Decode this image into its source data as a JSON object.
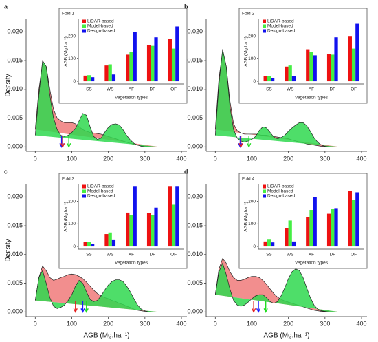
{
  "chart_data": [
    {
      "type": "area",
      "panel_label": "a",
      "ylabel": "Density",
      "x": [
        0,
        10,
        20,
        30,
        40,
        50,
        60,
        70,
        80,
        90,
        100,
        110,
        120,
        130,
        140,
        150,
        160,
        170,
        180,
        190,
        200,
        210,
        220,
        230,
        240,
        250,
        260,
        270,
        280,
        290,
        300,
        310,
        320,
        330,
        340
      ],
      "series": [
        {
          "color": "#f07a7a",
          "values": [
            0.003,
            0.01,
            0.0145,
            0.014,
            0.01,
            0.0065,
            0.005,
            0.0045,
            0.0042,
            0.0042,
            0.0042,
            0.004,
            0.0035,
            0.003,
            0.0027,
            0.0025,
            0.0024,
            0.0023,
            0.0022,
            0.002,
            0.0018,
            0.0016,
            0.0014,
            0.0012,
            0.001,
            0.0008,
            0.0006,
            0.0004,
            0.0003,
            0.0002,
            0.0001,
            5e-05,
            0,
            0,
            0
          ]
        },
        {
          "color": "#2fd84f",
          "values": [
            0.002,
            0.009,
            0.015,
            0.014,
            0.009,
            0.005,
            0.003,
            0.002,
            0.0018,
            0.002,
            0.0025,
            0.0032,
            0.0045,
            0.0058,
            0.0055,
            0.0035,
            0.0018,
            0.0013,
            0.0015,
            0.0025,
            0.0034,
            0.0039,
            0.004,
            0.0038,
            0.003,
            0.002,
            0.0012,
            0.0006,
            0.0003,
            0.0001,
            0,
            0,
            0,
            0,
            0
          ]
        }
      ],
      "arrows": [
        {
          "color": "#1a1aff",
          "x": 72
        },
        {
          "color": "#e52020",
          "x": 75
        },
        {
          "color": "#22dd22",
          "x": 92
        }
      ],
      "xlim": [
        -25,
        415
      ],
      "ylim": [
        -0.0008,
        0.0222
      ],
      "xticks": [
        0,
        100,
        200,
        300,
        400
      ],
      "yticks": [
        {
          "value": 0,
          "label": "0.000"
        },
        {
          "value": 0.005,
          "label": "0.005"
        },
        {
          "value": 0.01,
          "label": "0.010"
        },
        {
          "value": 0.015,
          "label": "0.015"
        },
        {
          "value": 0.02,
          "label": "0.020"
        }
      ],
      "inset": {
        "type": "bar",
        "title": "Fold 1",
        "ylabel": "AGB (Mg.ha⁻¹)",
        "xlabel": "Vegetation types",
        "categories": [
          "SS",
          "WS",
          "AF",
          "DF",
          "OF"
        ],
        "ylim": [
          -12,
          275
        ],
        "yticks": [
          0,
          100,
          200
        ],
        "series": [
          {
            "name": "LiDAR-based",
            "color": "#ee1111",
            "values": [
              25,
              70,
              118,
              162,
              188
            ]
          },
          {
            "name": "Model-based",
            "color": "#44ee44",
            "values": [
              27,
              75,
              130,
              157,
              145
            ]
          },
          {
            "name": "Design-based",
            "color": "#1111ee",
            "values": [
              18,
              30,
              220,
              195,
              243
            ]
          }
        ]
      }
    },
    {
      "type": "area",
      "panel_label": "b",
      "x": [
        0,
        10,
        20,
        30,
        40,
        50,
        60,
        70,
        80,
        90,
        100,
        110,
        120,
        130,
        140,
        150,
        160,
        170,
        180,
        190,
        200,
        210,
        220,
        230,
        240,
        250,
        260,
        270,
        280,
        290,
        300,
        310,
        320,
        330,
        340
      ],
      "series": [
        {
          "color": "#f07a7a",
          "values": [
            0.003,
            0.012,
            0.0165,
            0.014,
            0.008,
            0.004,
            0.0028,
            0.0024,
            0.0022,
            0.0022,
            0.0022,
            0.0022,
            0.0021,
            0.002,
            0.002,
            0.0019,
            0.0018,
            0.0017,
            0.0016,
            0.0015,
            0.0014,
            0.0012,
            0.001,
            0.0008,
            0.0007,
            0.0005,
            0.0004,
            0.0003,
            0.0002,
            0.0001,
            5e-05,
            0,
            0,
            0,
            0
          ]
        },
        {
          "color": "#2fd84f",
          "values": [
            0.002,
            0.011,
            0.017,
            0.014,
            0.007,
            0.003,
            0.0015,
            0.001,
            0.0008,
            0.001,
            0.0013,
            0.0018,
            0.0028,
            0.0035,
            0.0033,
            0.0025,
            0.0017,
            0.0014,
            0.0016,
            0.002,
            0.0027,
            0.0033,
            0.0038,
            0.0042,
            0.0042,
            0.0037,
            0.0027,
            0.0016,
            0.0008,
            0.0003,
            0.0001,
            0,
            0,
            0,
            0
          ]
        }
      ],
      "arrows": [
        {
          "color": "#1a1aff",
          "x": 68
        },
        {
          "color": "#e52020",
          "x": 70
        },
        {
          "color": "#22dd22",
          "x": 92
        }
      ],
      "xlim": [
        -25,
        415
      ],
      "ylim": [
        -0.0008,
        0.0222
      ],
      "xticks": [
        0,
        100,
        200,
        300,
        400
      ],
      "yticks": [
        {
          "value": 0,
          "label": "0.000"
        },
        {
          "value": 0.005,
          "label": "0.005"
        },
        {
          "value": 0.01,
          "label": "0.010"
        },
        {
          "value": 0.015,
          "label": "0.015"
        },
        {
          "value": 0.02,
          "label": "0.020"
        }
      ],
      "inset": {
        "type": "bar",
        "title": "Fold 2",
        "ylabel": "AGB (Mg.ha⁻¹)",
        "xlabel": "Vegetation types",
        "categories": [
          "SS",
          "WS",
          "AF",
          "DF",
          "OF"
        ],
        "ylim": [
          -12,
          275
        ],
        "yticks": [
          0,
          100,
          200
        ],
        "series": [
          {
            "name": "LiDAR-based",
            "color": "#ee1111",
            "values": [
              22,
              65,
              142,
              122,
              198
            ]
          },
          {
            "name": "Model-based",
            "color": "#44ee44",
            "values": [
              22,
              70,
              130,
              118,
              145
            ]
          },
          {
            "name": "Design-based",
            "color": "#1111ee",
            "values": [
              15,
              22,
              115,
              195,
              255
            ]
          }
        ]
      }
    },
    {
      "type": "area",
      "panel_label": "c",
      "ylabel": "Density",
      "xlabel": "AGB (Mg.ha⁻¹)",
      "x": [
        0,
        10,
        20,
        30,
        40,
        50,
        60,
        70,
        80,
        90,
        100,
        110,
        120,
        130,
        140,
        150,
        160,
        170,
        180,
        190,
        200,
        210,
        220,
        230,
        240,
        250,
        260,
        270,
        280,
        290,
        300,
        310,
        320,
        330,
        340
      ],
      "series": [
        {
          "color": "#f07a7a",
          "values": [
            0.002,
            0.006,
            0.008,
            0.0072,
            0.006,
            0.0055,
            0.0057,
            0.006,
            0.0062,
            0.0065,
            0.0066,
            0.0065,
            0.0062,
            0.0058,
            0.0052,
            0.0045,
            0.0038,
            0.0032,
            0.0028,
            0.0025,
            0.0023,
            0.002,
            0.0018,
            0.0015,
            0.0013,
            0.001,
            0.0008,
            0.0005,
            0.0003,
            0.0002,
            0.0001,
            5e-05,
            0,
            0,
            0
          ]
        },
        {
          "color": "#2fd84f",
          "values": [
            0.002,
            0.006,
            0.0072,
            0.005,
            0.0025,
            0.001,
            0.0006,
            0.0008,
            0.0012,
            0.002,
            0.003,
            0.0045,
            0.0055,
            0.005,
            0.0035,
            0.0022,
            0.0018,
            0.002,
            0.0028,
            0.0038,
            0.0047,
            0.0053,
            0.0056,
            0.0056,
            0.0053,
            0.0045,
            0.0035,
            0.0023,
            0.0012,
            0.0005,
            0.0002,
            0,
            0,
            0,
            0
          ]
        }
      ],
      "arrows": [
        {
          "color": "#e52020",
          "x": 110
        },
        {
          "color": "#1a1aff",
          "x": 130
        },
        {
          "color": "#22dd22",
          "x": 140
        }
      ],
      "xlim": [
        -25,
        415
      ],
      "ylim": [
        -0.0008,
        0.0222
      ],
      "xticks": [
        0,
        100,
        200,
        300,
        400
      ],
      "yticks": [
        {
          "value": 0,
          "label": "0.000"
        },
        {
          "value": 0.005,
          "label": "0.005"
        },
        {
          "value": 0.01,
          "label": "0.010"
        },
        {
          "value": 0.015,
          "label": "0.015"
        },
        {
          "value": 0.02,
          "label": "0.020"
        }
      ],
      "inset": {
        "type": "bar",
        "title": "Fold 3",
        "ylabel": "AGB (Mg.ha⁻¹)",
        "xlabel": "Vegetation types",
        "categories": [
          "SS",
          "WS",
          "AF",
          "DF",
          "OF"
        ],
        "ylim": [
          -12,
          275
        ],
        "yticks": [
          0,
          100,
          200
        ],
        "series": [
          {
            "name": "LiDAR-based",
            "color": "#ee1111",
            "values": [
              20,
              55,
              150,
              148,
              265
            ]
          },
          {
            "name": "Model-based",
            "color": "#44ee44",
            "values": [
              20,
              62,
              138,
              140,
              185
            ]
          },
          {
            "name": "Design-based",
            "color": "#1111ee",
            "values": [
              12,
              28,
              265,
              172,
              265
            ]
          }
        ]
      }
    },
    {
      "type": "area",
      "panel_label": "d",
      "xlabel": "AGB (Mg.ha⁻¹)",
      "x": [
        0,
        10,
        20,
        30,
        40,
        50,
        60,
        70,
        80,
        90,
        100,
        110,
        120,
        130,
        140,
        150,
        160,
        170,
        180,
        190,
        200,
        210,
        220,
        230,
        240,
        250,
        260,
        270,
        280,
        290,
        300,
        310,
        320,
        330,
        340
      ],
      "series": [
        {
          "color": "#f07a7a",
          "values": [
            0.003,
            0.0075,
            0.0093,
            0.0085,
            0.007,
            0.006,
            0.0055,
            0.0055,
            0.0057,
            0.006,
            0.0062,
            0.0062,
            0.006,
            0.0055,
            0.0048,
            0.004,
            0.0032,
            0.0026,
            0.0022,
            0.0019,
            0.0017,
            0.0015,
            0.0013,
            0.0011,
            0.0009,
            0.0007,
            0.0005,
            0.0003,
            0.0002,
            0.0001,
            5e-05,
            0,
            0,
            0,
            0
          ]
        },
        {
          "color": "#2fd84f",
          "values": [
            0.003,
            0.007,
            0.0085,
            0.0065,
            0.004,
            0.002,
            0.0012,
            0.001,
            0.0012,
            0.0017,
            0.0023,
            0.0028,
            0.003,
            0.003,
            0.0025,
            0.0018,
            0.0015,
            0.0018,
            0.0028,
            0.0042,
            0.0058,
            0.007,
            0.0075,
            0.0072,
            0.006,
            0.0042,
            0.0025,
            0.0012,
            0.0005,
            0.0002,
            0.0001,
            0,
            0,
            0,
            0
          ]
        }
      ],
      "arrows": [
        {
          "color": "#e52020",
          "x": 105
        },
        {
          "color": "#1a1aff",
          "x": 118
        },
        {
          "color": "#22dd22",
          "x": 138
        }
      ],
      "xlim": [
        -25,
        415
      ],
      "ylim": [
        -0.0008,
        0.0222
      ],
      "xticks": [
        0,
        100,
        200,
        300,
        400
      ],
      "yticks": [
        {
          "value": 0,
          "label": "0.000"
        },
        {
          "value": 0.005,
          "label": "0.005"
        },
        {
          "value": 0.01,
          "label": "0.010"
        },
        {
          "value": 0.015,
          "label": "0.015"
        },
        {
          "value": 0.02,
          "label": "0.020"
        }
      ],
      "inset": {
        "type": "bar",
        "title": "Fold 4",
        "ylabel": "AGB (Mg.ha⁻¹)",
        "xlabel": "Vegetation types",
        "categories": [
          "SS",
          "WS",
          "AF",
          "DF",
          "OF"
        ],
        "ylim": [
          -12,
          275
        ],
        "yticks": [
          0,
          100,
          200
        ],
        "series": [
          {
            "name": "LiDAR-based",
            "color": "#ee1111",
            "values": [
              22,
              80,
              130,
              145,
              245
            ]
          },
          {
            "name": "Model-based",
            "color": "#44ee44",
            "values": [
              30,
              115,
              162,
              165,
              205
            ]
          },
          {
            "name": "Design-based",
            "color": "#1111ee",
            "values": [
              18,
              22,
              218,
              170,
              240
            ]
          }
        ]
      }
    }
  ]
}
